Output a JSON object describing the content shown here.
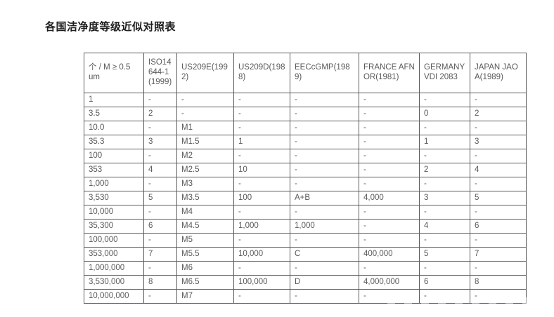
{
  "page": {
    "title": "各国洁净度等级近似对照表"
  },
  "table": {
    "columns": [
      "个 / M ≥ 0.5um",
      "ISO14644-1(1999)",
      "US209E(1992)",
      "US209D(1988)",
      "EECcGMP(1989)",
      "FRANCE AFNOR(1981)",
      "GERMANY VDI 2083",
      "JAPAN JAOA(1989)"
    ],
    "rows": [
      [
        "1",
        "-",
        "-",
        "-",
        "-",
        "-",
        "-",
        "-"
      ],
      [
        "3.5",
        "2",
        "-",
        "-",
        "-",
        "-",
        "0",
        "2"
      ],
      [
        "10.0",
        "-",
        "M1",
        "-",
        "-",
        "-",
        "-",
        "-"
      ],
      [
        "35.3",
        "3",
        "M1.5",
        "1",
        "-",
        "-",
        "1",
        "3"
      ],
      [
        "100",
        "-",
        "M2",
        "-",
        "-",
        "-",
        "-",
        "-"
      ],
      [
        "353",
        "4",
        "M2.5",
        "10",
        "-",
        "-",
        "2",
        "4"
      ],
      [
        "1,000",
        "-",
        "M3",
        "-",
        "-",
        "-",
        "-",
        "-"
      ],
      [
        "3,530",
        "5",
        "M3.5",
        "100",
        "A+B",
        "4,000",
        "3",
        "5"
      ],
      [
        "10,000",
        "-",
        "M4",
        "-",
        "-",
        "-",
        "-",
        "-"
      ],
      [
        "35,300",
        "6",
        "M4.5",
        "1,000",
        "1,000",
        "-",
        "4",
        "6"
      ],
      [
        "100,000",
        "-",
        "M5",
        "-",
        "-",
        "-",
        "-",
        "-"
      ],
      [
        "353,000",
        "7",
        "M5.5",
        "10,000",
        "C",
        "400,000",
        "5",
        "7"
      ],
      [
        "1,000,000",
        "-",
        "M6",
        "-",
        "-",
        "-",
        "-",
        "-"
      ],
      [
        "3,530,000",
        "8",
        "M6.5",
        "100,000",
        "D",
        "4,000,000",
        "6",
        "8"
      ],
      [
        "10,000,000",
        "-",
        "M7",
        "-",
        "-",
        "-",
        "-",
        "-"
      ]
    ]
  },
  "colors": {
    "title_text": "#1d1d1d",
    "cell_text": "#595959",
    "border": "#5c5c5c",
    "background": "#ffffff"
  }
}
